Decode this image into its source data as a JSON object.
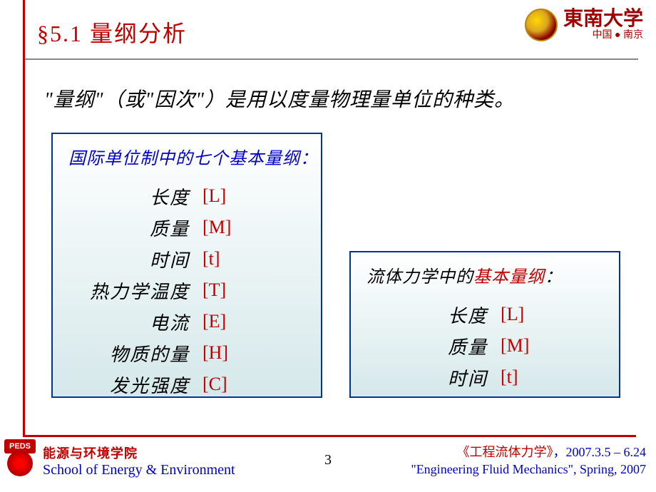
{
  "header": {
    "section_title": "§5.1 量纲分析",
    "university_name": "東南大学",
    "university_location": "中国 ● 南京"
  },
  "definition": "\"量纲\"（或\"因次\"）是用以度量物理量单位的种类。",
  "box1": {
    "title": "国际单位制中的七个基本量纲：",
    "border_color": "#003399",
    "bg_gradient_top": "#ffffff",
    "bg_gradient_bottom": "#d5e8ea",
    "rows": [
      {
        "label": "长度",
        "symbol": "[L]"
      },
      {
        "label": "质量",
        "symbol": "[M]"
      },
      {
        "label": "时间",
        "symbol": "[t]"
      },
      {
        "label": "热力学温度",
        "symbol": "[T]"
      },
      {
        "label": "电流",
        "symbol": "[E]"
      },
      {
        "label": "物质的量",
        "symbol": "[H]"
      },
      {
        "label": "发光强度",
        "symbol": "[C]"
      }
    ]
  },
  "box2": {
    "title_prefix": "流体力学中的",
    "title_highlight": "基本量纲",
    "title_suffix": "：",
    "rows": [
      {
        "label": "长度",
        "symbol": "[L]"
      },
      {
        "label": "质量",
        "symbol": "[M]"
      },
      {
        "label": "时间",
        "symbol": "[t]"
      }
    ]
  },
  "footer": {
    "logo_text": "PEDS",
    "school_cn": "能源与环境学院",
    "school_en": "School of Energy & Environment",
    "page_number": "3",
    "course_cn": "《工程流体力学》",
    "course_date": "，2007.3.5 – 6.24",
    "course_en": "\"Engineering Fluid Mechanics\", Spring, 2007"
  },
  "colors": {
    "title_red": "#c00000",
    "symbol_red": "#c00000",
    "box_title_blue": "#0000cc",
    "border_blue": "#003399",
    "text_black": "#000000",
    "footer_blue": "#0000cc"
  }
}
